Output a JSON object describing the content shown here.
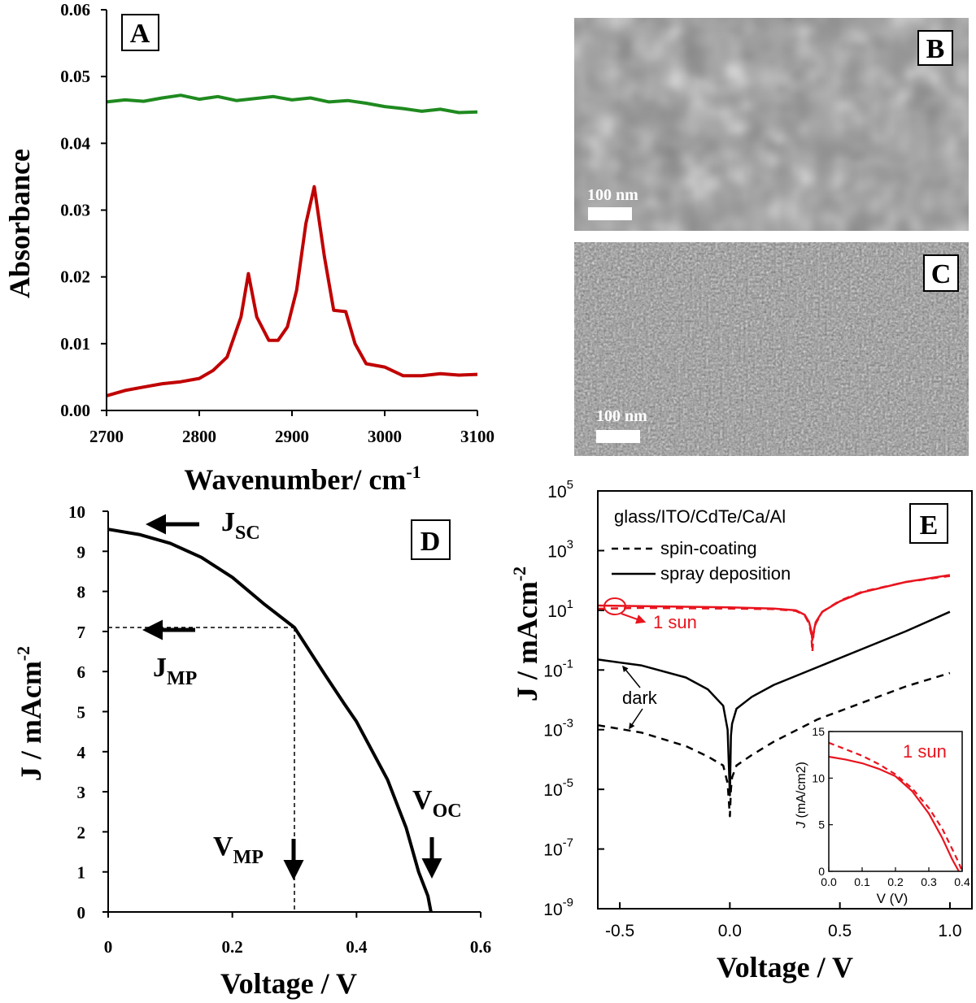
{
  "chart_data": [
    {
      "panel": "A",
      "type": "line",
      "xlabel": "Wavenumber/  cm",
      "xlabel_sup": "-1",
      "ylabel": "Absorbance",
      "xlim": [
        2700,
        3100
      ],
      "ylim": [
        0.0,
        0.06
      ],
      "xticks": [
        "2700",
        "2800",
        "2900",
        "3000",
        "3100"
      ],
      "yticks": [
        "0.00",
        "0.01",
        "0.02",
        "0.03",
        "0.04",
        "0.05",
        "0.06"
      ],
      "series": [
        {
          "name": "green",
          "color": "#1f8a1f",
          "x": [
            2700,
            2720,
            2740,
            2760,
            2780,
            2800,
            2820,
            2840,
            2860,
            2880,
            2900,
            2920,
            2940,
            2960,
            2980,
            3000,
            3020,
            3040,
            3060,
            3080,
            3100
          ],
          "y": [
            0.0462,
            0.0465,
            0.0463,
            0.0468,
            0.0472,
            0.0466,
            0.047,
            0.0464,
            0.0467,
            0.047,
            0.0465,
            0.0468,
            0.0462,
            0.0464,
            0.046,
            0.0455,
            0.0452,
            0.0448,
            0.0451,
            0.0446,
            0.0447
          ]
        },
        {
          "name": "red",
          "color": "#c00000",
          "x": [
            2700,
            2720,
            2740,
            2760,
            2780,
            2800,
            2815,
            2830,
            2845,
            2853,
            2862,
            2875,
            2885,
            2895,
            2905,
            2915,
            2924,
            2935,
            2945,
            2958,
            2968,
            2980,
            3000,
            3020,
            3040,
            3060,
            3080,
            3100
          ],
          "y": [
            0.0022,
            0.003,
            0.0035,
            0.004,
            0.0043,
            0.0048,
            0.006,
            0.008,
            0.014,
            0.0205,
            0.014,
            0.0105,
            0.0105,
            0.0125,
            0.018,
            0.028,
            0.0335,
            0.023,
            0.015,
            0.0148,
            0.01,
            0.007,
            0.0065,
            0.0052,
            0.0052,
            0.0055,
            0.0053,
            0.0054
          ]
        }
      ]
    },
    {
      "panel": "D",
      "type": "line",
      "xlabel": "Voltage / V",
      "ylabel": "J / mAcm",
      "ylabel_sup": "-2",
      "xlim": [
        0,
        0.6
      ],
      "ylim": [
        0,
        10
      ],
      "xticks": [
        "0",
        "0.2",
        "0.4",
        "0.6"
      ],
      "yticks": [
        "0",
        "1",
        "2",
        "3",
        "4",
        "5",
        "6",
        "7",
        "8",
        "9",
        "10"
      ],
      "series": [
        {
          "name": "J-V",
          "color": "#000000",
          "x": [
            0,
            0.05,
            0.1,
            0.15,
            0.2,
            0.25,
            0.3,
            0.35,
            0.38,
            0.4,
            0.45,
            0.48,
            0.5,
            0.51,
            0.515,
            0.52
          ],
          "y": [
            9.55,
            9.42,
            9.2,
            8.85,
            8.35,
            7.7,
            7.1,
            5.9,
            5.2,
            4.75,
            3.3,
            2.1,
            1.0,
            0.6,
            0.4,
            0.0
          ]
        }
      ],
      "annotations": {
        "jsc": {
          "main": "J",
          "sub": "SC"
        },
        "jmp": {
          "main": "J",
          "sub": "MP"
        },
        "vmp": {
          "main": "V",
          "sub": "MP"
        },
        "voc": {
          "main": "V",
          "sub": "OC"
        },
        "mpp": {
          "v": 0.3,
          "j": 7.1
        }
      }
    },
    {
      "panel": "E",
      "type": "line",
      "yscale": "log",
      "xlabel": "Voltage / V",
      "ylabel": "J / mAcm",
      "ylabel_sup": "-2",
      "xlim": [
        -0.6,
        1.1
      ],
      "ylim_exp": [
        -9,
        5
      ],
      "xticks": [
        "-0.5",
        "0.0",
        "0.5",
        "1.0"
      ],
      "ytick_exps": [
        "5",
        "3",
        "1",
        "-1",
        "-3",
        "-5",
        "-7",
        "-9"
      ],
      "ytick_base": "10",
      "legend": {
        "title": "glass/ITO/CdTe/Ca/Al",
        "dashed": "spin-coating",
        "solid": "spray deposition"
      },
      "labels": {
        "one_sun": "1 sun",
        "dark": "dark"
      },
      "series": [
        {
          "name": "spray deposition, 1 sun",
          "style": "solid",
          "color": "#e8141e",
          "x": [
            -0.6,
            -0.4,
            -0.2,
            0.0,
            0.2,
            0.3,
            0.34,
            0.36,
            0.37,
            0.375,
            0.38,
            0.39,
            0.42,
            0.5,
            0.6,
            0.8,
            1.0
          ],
          "y_exp": [
            1.16,
            1.14,
            1.12,
            1.1,
            1.06,
            1.0,
            0.85,
            0.6,
            0.3,
            0.0,
            0.25,
            0.6,
            0.95,
            1.3,
            1.6,
            1.95,
            2.18
          ]
        },
        {
          "name": "spin-coating, 1 sun",
          "style": "dashed",
          "color": "#e8141e",
          "x": [
            -0.6,
            -0.4,
            -0.2,
            0.0,
            0.2,
            0.3,
            0.34,
            0.36,
            0.37,
            0.375,
            0.38,
            0.39,
            0.42,
            0.5,
            0.6,
            0.8,
            1.0
          ],
          "y_exp": [
            1.05,
            1.08,
            1.07,
            1.06,
            1.04,
            0.98,
            0.83,
            0.55,
            0.2,
            -0.4,
            0.2,
            0.55,
            0.95,
            1.32,
            1.62,
            1.95,
            2.15
          ]
        },
        {
          "name": "spray deposition, dark",
          "style": "solid",
          "color": "#000000",
          "x": [
            -0.6,
            -0.4,
            -0.2,
            -0.1,
            -0.03,
            -0.01,
            0.0,
            0.005,
            0.01,
            0.03,
            0.1,
            0.2,
            0.4,
            0.6,
            0.8,
            1.0
          ],
          "y_exp": [
            -0.65,
            -0.85,
            -1.25,
            -1.65,
            -2.2,
            -3.0,
            -5.2,
            -3.2,
            -2.8,
            -2.3,
            -1.9,
            -1.5,
            -0.9,
            -0.3,
            0.3,
            0.95
          ]
        },
        {
          "name": "spin-coating, dark",
          "style": "dashed",
          "color": "#000000",
          "x": [
            -0.6,
            -0.4,
            -0.2,
            -0.1,
            -0.03,
            -0.01,
            0.0,
            0.005,
            0.01,
            0.03,
            0.1,
            0.2,
            0.4,
            0.6,
            0.8,
            1.0
          ],
          "y_exp": [
            -2.85,
            -3.1,
            -3.55,
            -3.9,
            -4.2,
            -4.8,
            -5.9,
            -5.0,
            -4.6,
            -4.2,
            -3.85,
            -3.4,
            -2.65,
            -2.1,
            -1.55,
            -1.1
          ]
        }
      ],
      "inset": {
        "xlabel": "V (V)",
        "ylabel": "J (mA/cm",
        "ylabel_sup": "2",
        "label": "1 sun",
        "xlim": [
          0,
          0.4
        ],
        "ylim": [
          0,
          15
        ],
        "xticks": [
          "0.0",
          "0.1",
          "0.2",
          "0.3",
          "0.4"
        ],
        "yticks": [
          "0",
          "5",
          "10",
          "15"
        ],
        "series": [
          {
            "name": "spray deposition",
            "style": "solid",
            "x": [
              0,
              0.05,
              0.1,
              0.15,
              0.2,
              0.25,
              0.3,
              0.34,
              0.37,
              0.39
            ],
            "y": [
              12.3,
              12.0,
              11.6,
              11.0,
              10.2,
              8.6,
              6.2,
              3.6,
              1.3,
              0.0
            ]
          },
          {
            "name": "spin-coating",
            "style": "dashed",
            "x": [
              0,
              0.05,
              0.1,
              0.15,
              0.2,
              0.25,
              0.3,
              0.34,
              0.37,
              0.39,
              0.4
            ],
            "y": [
              13.8,
              13.1,
              12.4,
              11.5,
              10.4,
              8.9,
              6.8,
              4.6,
              2.4,
              0.9,
              0.0
            ]
          }
        ]
      }
    }
  ],
  "panels": {
    "A": "A",
    "B": "B",
    "C": "C",
    "D": "D",
    "E": "E"
  },
  "micrographs": {
    "B": {
      "scale_label": "100 nm"
    },
    "C": {
      "scale_label": "100 nm"
    }
  }
}
